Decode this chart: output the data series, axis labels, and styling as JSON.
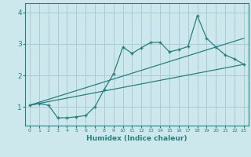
{
  "xlabel": "Humidex (Indice chaleur)",
  "bg_color": "#cce8ec",
  "grid_color": "#aaccd4",
  "line_color": "#2a7f7f",
  "xlim": [
    -0.5,
    23.5
  ],
  "ylim": [
    0.4,
    4.3
  ],
  "xticks": [
    0,
    1,
    2,
    3,
    4,
    5,
    6,
    7,
    8,
    9,
    10,
    11,
    12,
    13,
    14,
    15,
    16,
    17,
    18,
    19,
    20,
    21,
    22,
    23
  ],
  "yticks": [
    1,
    2,
    3,
    4
  ],
  "line1_x": [
    0,
    1,
    2,
    3,
    4,
    5,
    6,
    7,
    8,
    9,
    10,
    11,
    12,
    13,
    14,
    15,
    16,
    17,
    18,
    19,
    20,
    21,
    22,
    23
  ],
  "line1_y": [
    1.05,
    1.1,
    1.05,
    0.65,
    0.65,
    0.68,
    0.72,
    1.0,
    1.55,
    2.05,
    2.9,
    2.7,
    2.88,
    3.05,
    3.05,
    2.75,
    2.82,
    2.92,
    3.9,
    3.18,
    2.9,
    2.65,
    2.52,
    2.35
  ],
  "line2_x": [
    0,
    23
  ],
  "line2_y": [
    1.05,
    2.35
  ],
  "line3_x": [
    0,
    23
  ],
  "line3_y": [
    1.05,
    3.18
  ]
}
